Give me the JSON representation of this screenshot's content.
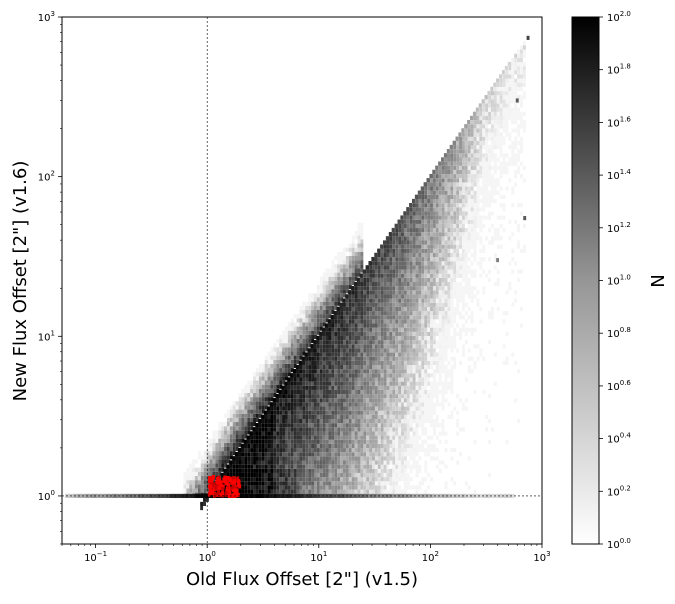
{
  "chart_data": {
    "type": "heatmap",
    "title": "",
    "xlabel": "Old Flux Offset [2\"] (v1.5)",
    "ylabel": "New Flux Offset [2\"] (v1.6)",
    "x_scale": "log",
    "y_scale": "log",
    "xlim": [
      0.05,
      1000
    ],
    "ylim": [
      0.5,
      1000
    ],
    "x_ticks": [
      {
        "value": 0.1,
        "base": "10",
        "exp": "−1"
      },
      {
        "value": 1,
        "base": "10",
        "exp": "0"
      },
      {
        "value": 10,
        "base": "10",
        "exp": "1"
      },
      {
        "value": 100,
        "base": "10",
        "exp": "2"
      },
      {
        "value": 1000,
        "base": "10",
        "exp": "3"
      }
    ],
    "y_ticks": [
      {
        "value": 1,
        "base": "10",
        "exp": "0"
      },
      {
        "value": 10,
        "base": "10",
        "exp": "1"
      },
      {
        "value": 100,
        "base": "10",
        "exp": "2"
      },
      {
        "value": 1000,
        "base": "10",
        "exp": "3"
      }
    ],
    "reference_lines": [
      {
        "axis": "x",
        "value": 1,
        "style": "dashed"
      },
      {
        "axis": "y",
        "value": 1,
        "style": "dashed"
      }
    ],
    "grid": false,
    "colormap": "greys",
    "colorbar": {
      "label": "N",
      "scale": "log",
      "range": [
        1,
        100
      ],
      "ticks": [
        {
          "value": 1.0,
          "base": "10",
          "exp": "0.0"
        },
        {
          "value": 1.585,
          "base": "10",
          "exp": "0.2"
        },
        {
          "value": 2.512,
          "base": "10",
          "exp": "0.4"
        },
        {
          "value": 3.981,
          "base": "10",
          "exp": "0.6"
        },
        {
          "value": 6.31,
          "base": "10",
          "exp": "0.8"
        },
        {
          "value": 10.0,
          "base": "10",
          "exp": "1.0"
        },
        {
          "value": 15.85,
          "base": "10",
          "exp": "1.2"
        },
        {
          "value": 25.12,
          "base": "10",
          "exp": "1.4"
        },
        {
          "value": 39.81,
          "base": "10",
          "exp": "1.6"
        },
        {
          "value": 63.1,
          "base": "10",
          "exp": "1.8"
        },
        {
          "value": 100.0,
          "base": "10",
          "exp": "2.0"
        }
      ]
    },
    "density_regions": [
      {
        "description": "dense one-to-one ridge along y = x",
        "x_range": [
          1,
          500
        ],
        "relation": "y = x",
        "peak_count": 100
      },
      {
        "description": "horizontal floor of points at y = 1",
        "x_range": [
          0.05,
          500
        ],
        "y": 1,
        "peak_count": 100
      },
      {
        "description": "diffuse scatter below the diagonal, spreading from x = 1 toward larger x",
        "x_range": [
          0.7,
          700
        ],
        "y_range": [
          1,
          100
        ]
      },
      {
        "description": "red overlay cluster",
        "color": "#ff0000",
        "x_center": 1.3,
        "y_center": 1.2,
        "x_range": [
          1,
          2.5
        ],
        "y_range": [
          1,
          1.5
        ]
      }
    ],
    "sample_bins": {
      "log_bin_width": 0.026,
      "ridge": [
        {
          "x": 1.0,
          "n": 60
        },
        {
          "x": 1.5,
          "n": 100
        },
        {
          "x": 2.0,
          "n": 100
        },
        {
          "x": 3.0,
          "n": 100
        },
        {
          "x": 5.0,
          "n": 90
        },
        {
          "x": 8.0,
          "n": 80
        },
        {
          "x": 12.0,
          "n": 70
        },
        {
          "x": 20.0,
          "n": 55
        },
        {
          "x": 30.0,
          "n": 40
        },
        {
          "x": 50.0,
          "n": 30
        },
        {
          "x": 80.0,
          "n": 20
        },
        {
          "x": 120.0,
          "n": 12
        },
        {
          "x": 200.0,
          "n": 6
        },
        {
          "x": 300.0,
          "n": 3
        },
        {
          "x": 500.0,
          "n": 2
        }
      ],
      "floor": [
        {
          "x": 0.06,
          "n": 3
        },
        {
          "x": 0.1,
          "n": 6
        },
        {
          "x": 0.2,
          "n": 10
        },
        {
          "x": 0.4,
          "n": 25
        },
        {
          "x": 0.7,
          "n": 60
        },
        {
          "x": 1.0,
          "n": 100
        },
        {
          "x": 2.0,
          "n": 100
        },
        {
          "x": 5.0,
          "n": 60
        },
        {
          "x": 10.0,
          "n": 30
        },
        {
          "x": 30.0,
          "n": 10
        },
        {
          "x": 100.0,
          "n": 4
        },
        {
          "x": 300.0,
          "n": 2
        }
      ],
      "outliers": [
        {
          "x": 750,
          "y": 740,
          "n": 3
        },
        {
          "x": 600,
          "y": 300,
          "n": 2
        },
        {
          "x": 700,
          "y": 55,
          "n": 2
        },
        {
          "x": 400,
          "y": 30,
          "n": 1
        }
      ]
    }
  }
}
